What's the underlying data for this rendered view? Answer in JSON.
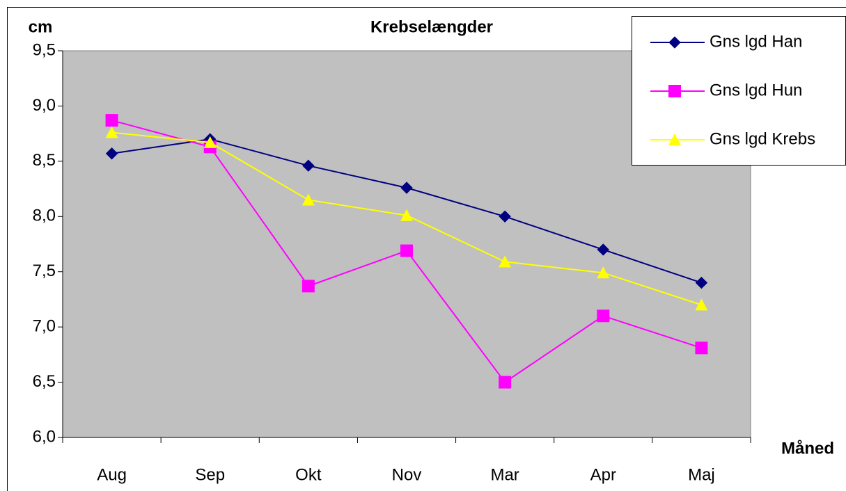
{
  "chart_data": {
    "type": "line",
    "title": "Krebselængder",
    "y_label": "cm",
    "x_label": "Måned",
    "categories": [
      "Aug",
      "Sep",
      "Okt",
      "Nov",
      "Mar",
      "Apr",
      "Maj"
    ],
    "series": [
      {
        "name": "Gns lgd Han",
        "color": "#000080",
        "marker": "diamond",
        "values": [
          8.57,
          8.7,
          8.46,
          8.26,
          8.0,
          7.7,
          7.4
        ]
      },
      {
        "name": "Gns lgd Hun",
        "color": "#ff00ff",
        "marker": "square",
        "values": [
          8.87,
          8.63,
          7.37,
          7.69,
          6.5,
          7.1,
          6.81
        ]
      },
      {
        "name": "Gns lgd Krebs",
        "color": "#ffff00",
        "marker": "triangle",
        "values": [
          8.76,
          8.67,
          8.15,
          8.01,
          7.59,
          7.49,
          7.2
        ]
      }
    ],
    "ylim": [
      6.0,
      9.5
    ],
    "yticks": [
      {
        "value": 6.0,
        "label": "6,0"
      },
      {
        "value": 6.5,
        "label": "6,5"
      },
      {
        "value": 7.0,
        "label": "7,0"
      },
      {
        "value": 7.5,
        "label": "7,5"
      },
      {
        "value": 8.0,
        "label": "8,0"
      },
      {
        "value": 8.5,
        "label": "8,5"
      },
      {
        "value": 9.0,
        "label": "9,0"
      },
      {
        "value": 9.5,
        "label": "9,5"
      }
    ],
    "grid": false,
    "plot_background": "#c0c0c0",
    "legend": "top-right"
  }
}
